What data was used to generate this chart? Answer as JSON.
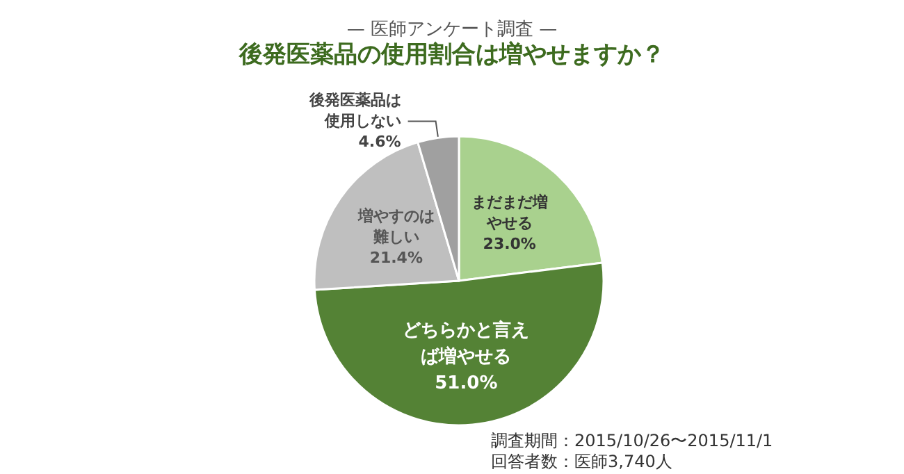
{
  "chart_data": {
    "type": "pie",
    "title": "後発医薬品の使用割合は増やせますか？",
    "subtitle": "— 医師アンケート調査 —",
    "categories": [
      "まだまだ増やせる",
      "どちらかと言えば増やせる",
      "増やすのは難しい",
      "後発医薬品は使用しない"
    ],
    "values": [
      23.0,
      51.0,
      21.4,
      4.6
    ],
    "colors": [
      "#a9d18e",
      "#548235",
      "#bfbfbf",
      "#a0a0a0"
    ],
    "value_labels": [
      "23.0%",
      "51.0%",
      "21.4%",
      "4.6%"
    ],
    "annotations": [
      "調査期間：2015/10/26〜2015/11/1",
      "回答者数：医師3,740人"
    ]
  }
}
